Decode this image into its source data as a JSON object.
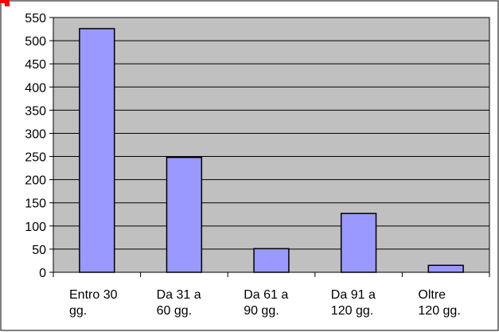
{
  "chart_data": {
    "type": "bar",
    "title": "",
    "xlabel": "",
    "ylabel": "",
    "categories": [
      [
        "Entro 30",
        "gg."
      ],
      [
        "Da 31 a",
        "60 gg."
      ],
      [
        "Da 61 a",
        "90 gg."
      ],
      [
        "Da 91 a",
        "120 gg."
      ],
      [
        "Oltre",
        "120 gg."
      ]
    ],
    "values": [
      526,
      248,
      51,
      127,
      15
    ],
    "ylim": [
      0,
      550
    ],
    "yticks": [
      0,
      50,
      100,
      150,
      200,
      250,
      300,
      350,
      400,
      450,
      500,
      550
    ],
    "grid": true,
    "legend": "none"
  },
  "style": {
    "plot_background": "#c0c0c0",
    "bar_fill": "#9999ff",
    "bar_stroke": "#000000",
    "gridline": "#000000",
    "frame_stroke": "#000000",
    "page_background": "#ffffff",
    "corner_mark": "#ff0000"
  }
}
